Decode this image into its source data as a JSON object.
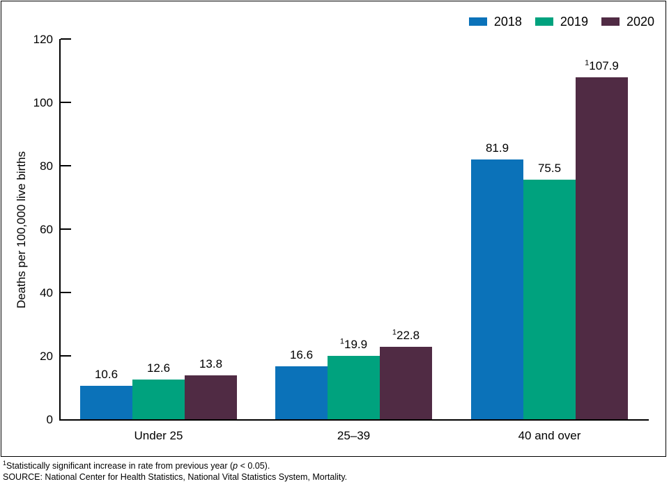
{
  "chart_data": {
    "type": "bar",
    "categories": [
      "Under 25",
      "25–39",
      "40 and over"
    ],
    "series": [
      {
        "name": "2018",
        "color": "#0B72B9",
        "values": [
          10.6,
          16.6,
          81.9
        ],
        "significant": [
          false,
          false,
          false
        ]
      },
      {
        "name": "2019",
        "color": "#00A27E",
        "values": [
          12.6,
          19.9,
          75.5
        ],
        "significant": [
          false,
          true,
          false
        ]
      },
      {
        "name": "2020",
        "color": "#502B44",
        "values": [
          13.8,
          22.8,
          107.9
        ],
        "significant": [
          false,
          true,
          true
        ]
      }
    ],
    "title": "",
    "xlabel": "",
    "ylabel": "Deaths per 100,000 live births",
    "ylim": [
      0,
      120
    ],
    "ytick_step": 20,
    "grid": false,
    "legend_position": "top-right",
    "sig_marker": "1"
  },
  "footnotes": {
    "note_marker": "1",
    "note_text": "Statistically significant increase in rate from previous year (",
    "note_p": "p",
    "note_rest": " < 0.05).",
    "source": "SOURCE: National Center for Health Statistics, National Vital Statistics System, Mortality."
  }
}
